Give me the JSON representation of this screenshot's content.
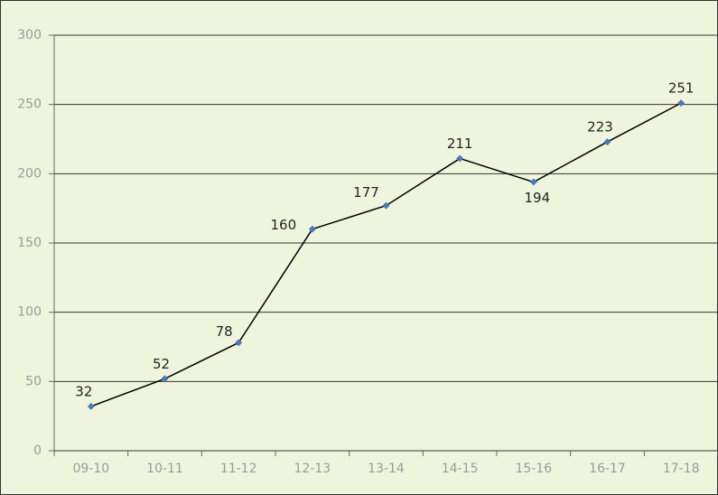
{
  "chart_data": {
    "type": "line",
    "categories": [
      "09-10",
      "10-11",
      "11-12",
      "12-13",
      "13-14",
      "14-15",
      "15-16",
      "16-17",
      "17-18"
    ],
    "values": [
      32,
      52,
      78,
      160,
      177,
      211,
      194,
      223,
      251
    ],
    "color": "#000000",
    "marker_color": "#4a7ab8",
    "ylim": [
      0,
      300
    ],
    "yticks": [
      0,
      50,
      100,
      150,
      200,
      250,
      300
    ],
    "grid": true
  }
}
